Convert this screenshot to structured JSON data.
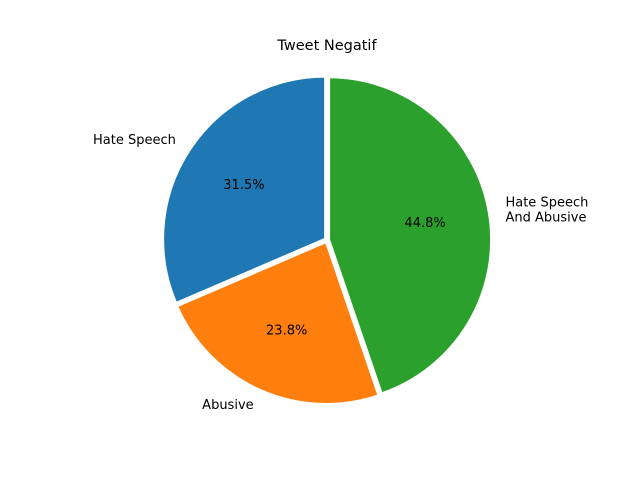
{
  "chart_data": {
    "type": "pie",
    "title": "Tweet Negatif",
    "categories": [
      "Hate Speech",
      "Abusive",
      "Hate Speech\nAnd Abusive"
    ],
    "values": [
      31.5,
      23.8,
      44.8
    ],
    "percent_labels": [
      "31.5%",
      "23.8%",
      "44.8%"
    ],
    "colors": [
      "#1f77b4",
      "#ff7f0e",
      "#2ca02c"
    ],
    "start_angle_deg": 90,
    "direction": "counterclockwise",
    "explode": [
      0.01,
      0.01,
      0.01
    ],
    "edgecolor": "#ffffff"
  }
}
